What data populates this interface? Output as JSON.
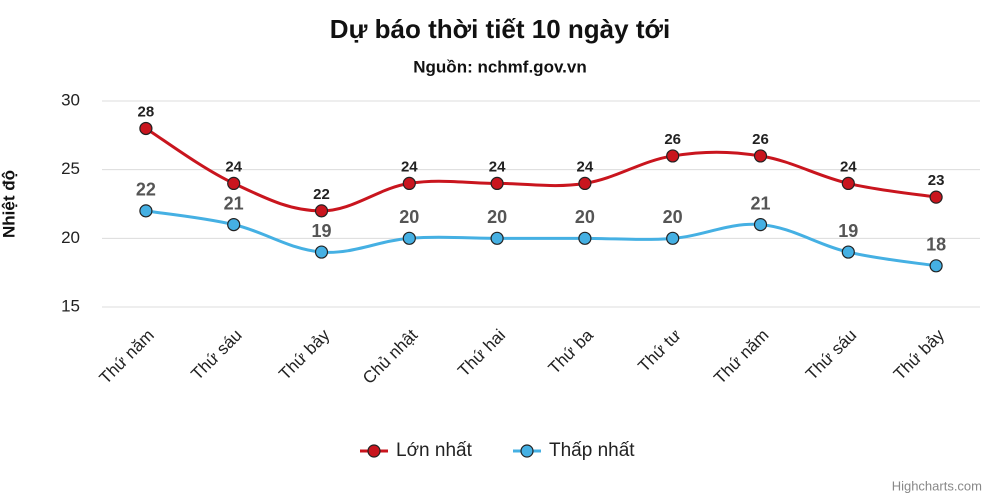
{
  "chart_data": {
    "type": "line",
    "title": "Dự báo thời tiết 10 ngày tới",
    "subtitle": "Nguồn: nchmf.gov.vn",
    "y_axis_label": "Nhiệt độ",
    "credits": "Highcharts.com",
    "categories": [
      "Thứ năm",
      "Thứ sáu",
      "Thứ bảy",
      "Chủ nhật",
      "Thứ hai",
      "Thứ ba",
      "Thứ tư",
      "Thứ năm",
      "Thứ sáu",
      "Thứ bảy"
    ],
    "series": [
      {
        "name": "Lớn nhất",
        "color": "#c9151e",
        "values": [
          28,
          24,
          22,
          24,
          24,
          24,
          26,
          26,
          24,
          23
        ]
      },
      {
        "name": "Thấp nhất",
        "color": "#45b0e3",
        "values": [
          22,
          21,
          19,
          20,
          20,
          20,
          20,
          21,
          19,
          18
        ]
      }
    ],
    "ylim": [
      15,
      30
    ],
    "yticks": [
      15,
      20,
      25,
      30
    ],
    "grid": true,
    "legend": "bottom"
  }
}
